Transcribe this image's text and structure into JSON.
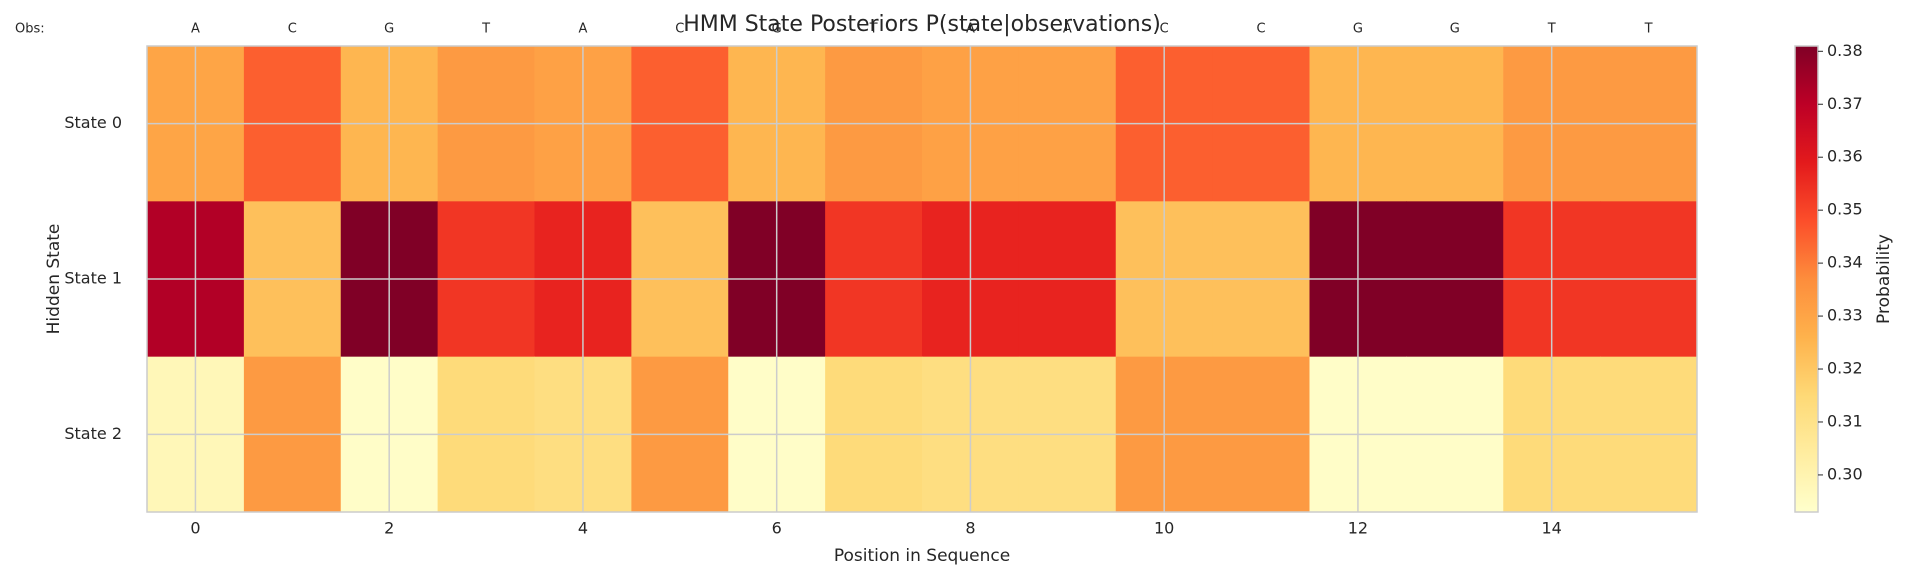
{
  "chart_data": {
    "type": "heatmap",
    "title": "HMM State Posteriors P(state|observations)",
    "xlabel": "Position in Sequence",
    "ylabel": "Hidden State",
    "obs_label": "Obs:",
    "observations": [
      "A",
      "C",
      "G",
      "T",
      "A",
      "C",
      "G",
      "T",
      "A",
      "A",
      "C",
      "C",
      "G",
      "G",
      "T",
      "T"
    ],
    "categories": [
      "State 0",
      "State 1",
      "State 2"
    ],
    "z": [
      [
        0.33,
        0.345,
        0.325,
        0.333,
        0.331,
        0.345,
        0.325,
        0.333,
        0.331,
        0.331,
        0.345,
        0.345,
        0.325,
        0.325,
        0.333,
        0.333
      ],
      [
        0.372,
        0.322,
        0.381,
        0.353,
        0.357,
        0.322,
        0.381,
        0.353,
        0.357,
        0.357,
        0.322,
        0.322,
        0.381,
        0.381,
        0.353,
        0.353
      ],
      [
        0.298,
        0.333,
        0.294,
        0.314,
        0.312,
        0.333,
        0.294,
        0.314,
        0.312,
        0.312,
        0.333,
        0.333,
        0.294,
        0.294,
        0.314,
        0.314
      ]
    ],
    "xlim": [
      -0.5,
      15.5
    ],
    "xticks": [
      0,
      2,
      4,
      6,
      8,
      10,
      12,
      14
    ],
    "colormap": [
      "#ffffcc",
      "#ffeda0",
      "#fed976",
      "#feb24c",
      "#fd8d3c",
      "#fc4e2a",
      "#e31a1c",
      "#bd0026",
      "#800026"
    ],
    "colorbar_label": "Probability",
    "colorbar_lim": [
      0.293,
      0.381
    ],
    "colorbar_ticks": [
      {
        "value": 0.3,
        "label": "0.30"
      },
      0.31,
      0.32,
      0.33,
      0.34,
      0.35,
      0.36,
      0.37,
      0.38
    ],
    "grid": true
  }
}
